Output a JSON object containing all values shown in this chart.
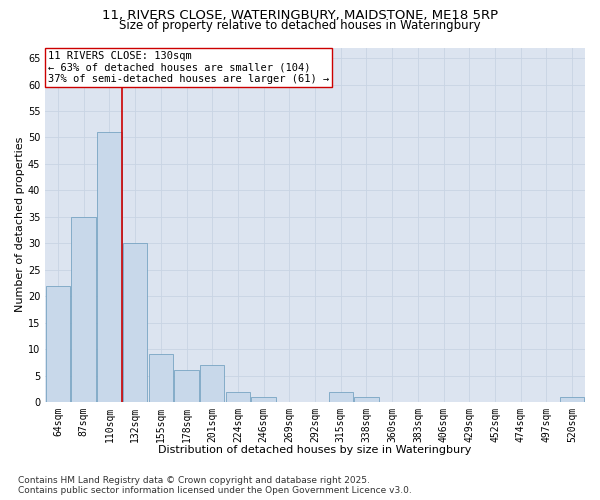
{
  "title_line1": "11, RIVERS CLOSE, WATERINGBURY, MAIDSTONE, ME18 5RP",
  "title_line2": "Size of property relative to detached houses in Wateringbury",
  "xlabel": "Distribution of detached houses by size in Wateringbury",
  "ylabel": "Number of detached properties",
  "categories": [
    "64sqm",
    "87sqm",
    "110sqm",
    "132sqm",
    "155sqm",
    "178sqm",
    "201sqm",
    "224sqm",
    "246sqm",
    "269sqm",
    "292sqm",
    "315sqm",
    "338sqm",
    "360sqm",
    "383sqm",
    "406sqm",
    "429sqm",
    "452sqm",
    "474sqm",
    "497sqm",
    "520sqm"
  ],
  "values": [
    22,
    35,
    51,
    30,
    9,
    6,
    7,
    2,
    1,
    0,
    0,
    2,
    1,
    0,
    0,
    0,
    0,
    0,
    0,
    0,
    1
  ],
  "bar_color": "#c8d8ea",
  "bar_edge_color": "#6699bb",
  "reference_line_x": 2.5,
  "reference_line_color": "#cc0000",
  "annotation_text": "11 RIVERS CLOSE: 130sqm\n← 63% of detached houses are smaller (104)\n37% of semi-detached houses are larger (61) →",
  "annotation_box_facecolor": "#ffffff",
  "annotation_box_edgecolor": "#cc0000",
  "ylim": [
    0,
    67
  ],
  "yticks": [
    0,
    5,
    10,
    15,
    20,
    25,
    30,
    35,
    40,
    45,
    50,
    55,
    60,
    65
  ],
  "grid_color": "#c8d4e4",
  "background_color": "#dce4f0",
  "footer_text": "Contains HM Land Registry data © Crown copyright and database right 2025.\nContains public sector information licensed under the Open Government Licence v3.0.",
  "title_fontsize": 9.5,
  "subtitle_fontsize": 8.5,
  "axis_label_fontsize": 8,
  "tick_fontsize": 7,
  "annotation_fontsize": 7.5,
  "footer_fontsize": 6.5
}
